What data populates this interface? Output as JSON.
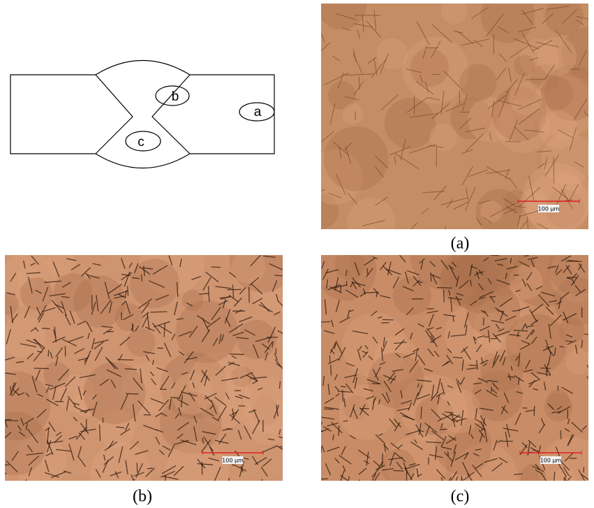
{
  "diagram": {
    "labels": [
      "b",
      "a",
      "c"
    ]
  },
  "panels": [
    {
      "caption": "(a)",
      "scale_bar": "100 µm"
    },
    {
      "caption": "(b)",
      "scale_bar": "100 µm"
    },
    {
      "caption": "(c)",
      "scale_bar": "100 µm"
    }
  ]
}
